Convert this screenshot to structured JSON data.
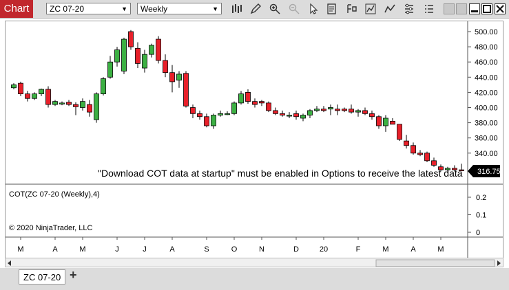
{
  "window": {
    "title": "Chart",
    "instrument": "ZC 07-20",
    "period": "Weekly",
    "colors": {
      "accent": "#c1272d",
      "up": "#3cb043",
      "down": "#e8202a"
    }
  },
  "toolbar": {
    "icons": [
      "bar-type-icon",
      "drawing-tool-icon",
      "zoom-in-icon",
      "zoom-out-icon",
      "pointer-icon",
      "data-box-icon",
      "strategies-icon",
      "indicators-icon",
      "chart-trader-icon",
      "properties-icon"
    ]
  },
  "price_panel": {
    "message": "\"Download COT data at startup\" must be enabled in Options to receive the latest data",
    "last_price": "316.75",
    "y_ticks": [
      "500.00",
      "480.00",
      "460.00",
      "440.00",
      "420.00",
      "400.00",
      "380.00",
      "360.00",
      "340.00"
    ]
  },
  "indicator_panel": {
    "label": "COT(ZC 07-20 (Weekly),4)",
    "copyright": "© 2020 NinjaTrader, LLC",
    "y_ticks": [
      "0.2",
      "0.1",
      "0"
    ]
  },
  "x_axis": {
    "labels": [
      "M",
      "A",
      "M",
      "J",
      "J",
      "A",
      "S",
      "O",
      "N",
      "D",
      "20",
      "F",
      "M",
      "A",
      "M"
    ]
  },
  "chart_data": {
    "type": "candlestick",
    "title": "ZC 07-20 Weekly",
    "ylim": [
      300,
      505
    ],
    "ohlc": [
      [
        426,
        432,
        424,
        430
      ],
      [
        432,
        434,
        415,
        418
      ],
      [
        418,
        422,
        408,
        412
      ],
      [
        412,
        420,
        410,
        418
      ],
      [
        418,
        425,
        415,
        424
      ],
      [
        424,
        428,
        400,
        404
      ],
      [
        404,
        410,
        402,
        408
      ],
      [
        406,
        408,
        403,
        406
      ],
      [
        407,
        410,
        402,
        404
      ],
      [
        404,
        407,
        390,
        401
      ],
      [
        400,
        412,
        396,
        408
      ],
      [
        404,
        410,
        388,
        394
      ],
      [
        384,
        420,
        380,
        418
      ],
      [
        418,
        440,
        416,
        438
      ],
      [
        440,
        468,
        438,
        460
      ],
      [
        460,
        480,
        454,
        476
      ],
      [
        448,
        492,
        444,
        490
      ],
      [
        500,
        502,
        476,
        480
      ],
      [
        478,
        486,
        452,
        458
      ],
      [
        452,
        476,
        446,
        470
      ],
      [
        470,
        484,
        466,
        482
      ],
      [
        490,
        494,
        458,
        462
      ],
      [
        462,
        470,
        440,
        446
      ],
      [
        446,
        456,
        420,
        434
      ],
      [
        436,
        448,
        426,
        444
      ],
      [
        445,
        448,
        400,
        402
      ],
      [
        400,
        404,
        386,
        392
      ],
      [
        392,
        396,
        384,
        388
      ],
      [
        388,
        392,
        374,
        376
      ],
      [
        376,
        392,
        372,
        390
      ],
      [
        390,
        396,
        388,
        392
      ],
      [
        392,
        395,
        390,
        392
      ],
      [
        392,
        408,
        390,
        406
      ],
      [
        406,
        422,
        404,
        418
      ],
      [
        420,
        424,
        405,
        408
      ],
      [
        408,
        412,
        400,
        404
      ],
      [
        408,
        410,
        402,
        406
      ],
      [
        406,
        408,
        394,
        396
      ],
      [
        396,
        400,
        390,
        392
      ],
      [
        392,
        396,
        388,
        390
      ],
      [
        390,
        394,
        386,
        390
      ],
      [
        392,
        396,
        384,
        388
      ],
      [
        386,
        392,
        382,
        390
      ],
      [
        390,
        398,
        386,
        396
      ],
      [
        396,
        402,
        394,
        398
      ],
      [
        398,
        402,
        394,
        396
      ],
      [
        398,
        404,
        390,
        400
      ],
      [
        398,
        404,
        390,
        396
      ],
      [
        398,
        400,
        394,
        396
      ],
      [
        398,
        404,
        392,
        394
      ],
      [
        394,
        398,
        388,
        396
      ],
      [
        396,
        400,
        390,
        392
      ],
      [
        392,
        396,
        384,
        388
      ],
      [
        388,
        390,
        372,
        376
      ],
      [
        376,
        390,
        368,
        386
      ],
      [
        382,
        386,
        378,
        378
      ],
      [
        378,
        378,
        356,
        358
      ],
      [
        356,
        364,
        346,
        350
      ],
      [
        350,
        354,
        338,
        340
      ],
      [
        340,
        344,
        336,
        338
      ],
      [
        340,
        342,
        328,
        330
      ],
      [
        330,
        334,
        322,
        324
      ],
      [
        322,
        325,
        316,
        318
      ],
      [
        318,
        322,
        314,
        320
      ],
      [
        320,
        324,
        316,
        318
      ],
      [
        318,
        326,
        316,
        317
      ]
    ]
  }
}
